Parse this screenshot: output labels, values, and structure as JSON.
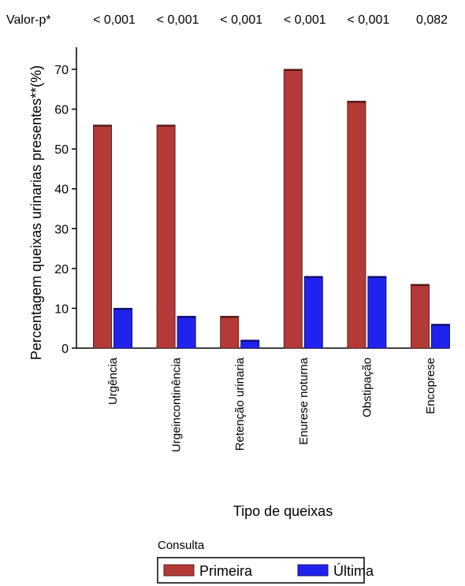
{
  "chart_data": {
    "type": "bar",
    "title": "",
    "xlabel": "Tipo de queixas",
    "ylabel": "Percentagem queixas urinarias presentes**(%)",
    "ylim": [
      0,
      75
    ],
    "yticks": [
      0,
      10,
      20,
      30,
      40,
      50,
      60,
      70
    ],
    "grid": false,
    "categories": [
      "Urgência",
      "Urgeincontinência",
      "Retenção urinaria",
      "Enurese noturna",
      "Obstipação",
      "Encoprese"
    ],
    "series": [
      {
        "name": "Primeira",
        "color": "#b33a37",
        "values": [
          56,
          56,
          8,
          70,
          62,
          16
        ]
      },
      {
        "name": "Última",
        "color": "#2222ee",
        "values": [
          10,
          8,
          2,
          18,
          18,
          6
        ]
      }
    ],
    "pvalue_label": "Valor-p*",
    "pvalues": [
      "< 0,001",
      "< 0,001",
      "< 0,001",
      "< 0,001",
      "< 0,001",
      "0,082"
    ],
    "legend_title": "Consulta",
    "legend_position": "bottom-center"
  }
}
